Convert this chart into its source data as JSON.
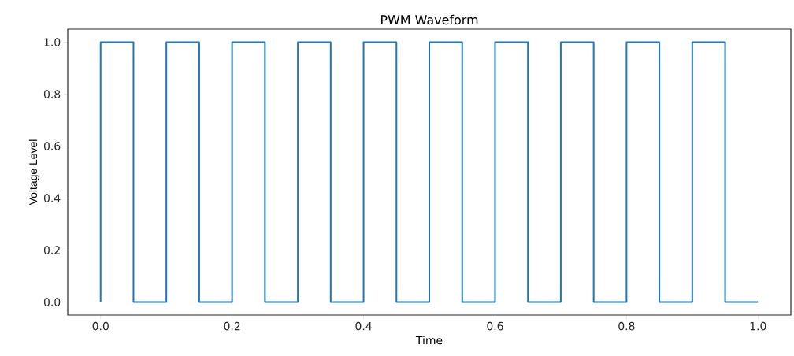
{
  "chart_data": {
    "type": "step",
    "title": "PWM Waveform",
    "xlabel": "Time",
    "ylabel": "Voltage Level",
    "color": "#1f77b4",
    "x": [
      0,
      0,
      0.05,
      0.1,
      0.15,
      0.2,
      0.25,
      0.3,
      0.35,
      0.4,
      0.45,
      0.5,
      0.55,
      0.6,
      0.65,
      0.7,
      0.75,
      0.8,
      0.85,
      0.9,
      0.95,
      1.0
    ],
    "values": [
      0,
      1,
      0,
      1,
      0,
      1,
      0,
      1,
      0,
      1,
      0,
      1,
      0,
      1,
      0,
      1,
      0,
      1,
      0,
      1,
      0,
      0
    ],
    "xlim": [
      -0.05,
      1.05
    ],
    "ylim": [
      -0.05,
      1.05
    ],
    "xticks": [
      {
        "value": 0,
        "label": "0.0"
      },
      0.2,
      0.4,
      0.6,
      0.8,
      {
        "value": 1,
        "label": "1.0"
      }
    ],
    "yticks": [
      {
        "value": 0,
        "label": "0.0"
      },
      0.2,
      0.4,
      0.6,
      0.8,
      {
        "value": 1,
        "label": "1.0"
      }
    ]
  }
}
